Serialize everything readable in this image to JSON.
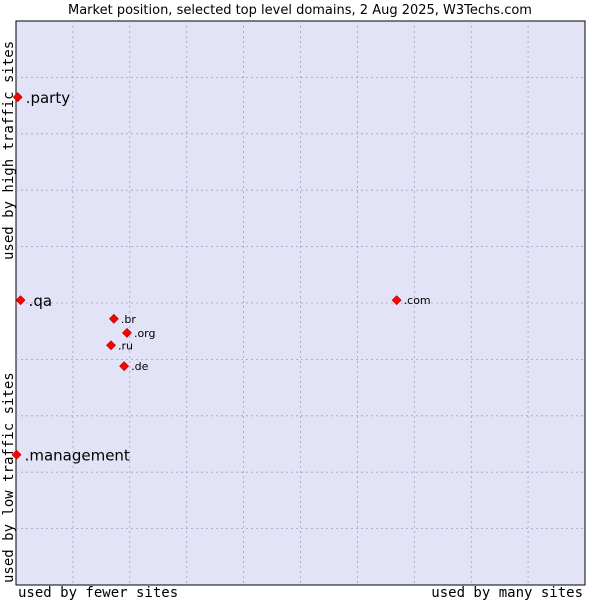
{
  "chart_data": {
    "type": "scatter",
    "title": "Market position, selected top level domains, 2 Aug 2025, W3Techs.com",
    "xlabel_left": "used by fewer sites",
    "xlabel_right": "used by many sites",
    "ylabel_bottom": "used by low traffic sites",
    "ylabel_top": "used by high traffic sites",
    "xlim": [
      0,
      100
    ],
    "ylim": [
      0,
      100
    ],
    "grid": true,
    "colors": {
      "plot_bg": "#e3e3f8",
      "marker": "#ff0000",
      "grid": "#a0a0c0"
    },
    "points": [
      {
        "label": ".party",
        "x": 0.3,
        "y": 86.5,
        "size": "large"
      },
      {
        "label": ".qa",
        "x": 0.8,
        "y": 50.5,
        "size": "large"
      },
      {
        "label": ".management",
        "x": 0.1,
        "y": 23.1,
        "size": "large"
      },
      {
        "label": ".com",
        "x": 66.9,
        "y": 50.5,
        "size": "small"
      },
      {
        "label": ".br",
        "x": 17.2,
        "y": 47.2,
        "size": "small"
      },
      {
        "label": ".org",
        "x": 19.5,
        "y": 44.7,
        "size": "small"
      },
      {
        "label": ".ru",
        "x": 16.7,
        "y": 42.5,
        "size": "small"
      },
      {
        "label": ".de",
        "x": 19.0,
        "y": 38.8,
        "size": "small"
      }
    ]
  }
}
